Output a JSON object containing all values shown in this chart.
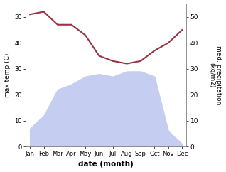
{
  "months": [
    "Jan",
    "Feb",
    "Mar",
    "Apr",
    "May",
    "Jun",
    "Jul",
    "Aug",
    "Sep",
    "Oct",
    "Nov",
    "Dec"
  ],
  "temperature": [
    51,
    52,
    47,
    47,
    43,
    35,
    33,
    32,
    33,
    37,
    40,
    45
  ],
  "rainfall": [
    7,
    12,
    22,
    24,
    27,
    28,
    27,
    29,
    29,
    27,
    6,
    1
  ],
  "temp_color": "#993344",
  "rainfall_fill_color": "#c5cdf0",
  "ylabel_left": "max temp (C)",
  "ylabel_right": "med. precipitation\n(kg/m2)",
  "xlabel": "date (month)",
  "ylim": [
    0,
    55
  ],
  "yticks": [
    0,
    10,
    20,
    30,
    40,
    50
  ],
  "background_color": "#ffffff"
}
